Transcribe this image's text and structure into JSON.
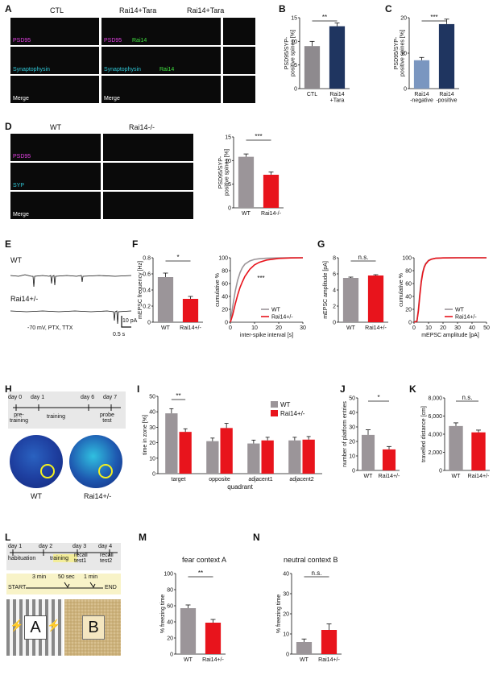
{
  "panels": {
    "A": {
      "letter": "A",
      "col_headers": [
        "CTL",
        "Rai14+Tara",
        "Rai14+Tara"
      ],
      "row_ctl": [
        "PSD95",
        "Synaptophysin",
        "Merge"
      ],
      "row_rai_a": [
        "PSD95",
        "Synaptophysin",
        "Merge"
      ],
      "row_rai_b": [
        "Rai14",
        "Rai14"
      ]
    },
    "B": {
      "letter": "B",
      "ylabel": "PSD95/SYP-\npositive spines [%]",
      "sig": "**"
    },
    "C": {
      "letter": "C",
      "ylabel": "PSD95/SYP-\npositive spines [%]",
      "sig": "***"
    },
    "D": {
      "letter": "D",
      "col_headers": [
        "WT",
        "Rai14-/-"
      ],
      "rows": [
        "PSD95",
        "SYP",
        "Merge"
      ],
      "ylabel": "PSD95/SYP-\npositive spines [%]",
      "sig": "***"
    },
    "E": {
      "letter": "E",
      "trace_labels": [
        "WT",
        "Rai14+/-"
      ],
      "condition": "-70 mV, PTX, TTX",
      "scale_y": "10 pA",
      "scale_x": "0.5 s"
    },
    "F": {
      "letter": "F",
      "bar_ylabel": "mEPSC frequency [Hz]",
      "sig": "*",
      "cum_ylabel": "cumulative %",
      "cum_xlabel": "inter-spike interval [s]",
      "cum_sig": "***",
      "legend": [
        "WT",
        "Rai14+/-"
      ]
    },
    "G": {
      "letter": "G",
      "bar_ylabel": "mEPSC amplitude [pA]",
      "sig": "n.s.",
      "cum_ylabel": "cumulative %",
      "cum_xlabel": "mEPSC amplitude [pA]",
      "legend": [
        "WT",
        "Rai14+/-"
      ]
    },
    "H": {
      "letter": "H",
      "days": [
        "day 0",
        "day 1",
        "day 6",
        "day 7"
      ],
      "phases": [
        "pre-\ntraining",
        "training",
        "probe\ntest"
      ],
      "maze_labels": [
        "WT",
        "Rai14+/-"
      ]
    },
    "I": {
      "letter": "I",
      "ylabel": "time in zone [%]",
      "xlabel": "quadrant",
      "sig": "**",
      "legend": [
        "WT",
        "Rai14+/-"
      ]
    },
    "J": {
      "letter": "J",
      "ylabel": "number of platform entries",
      "sig": "*"
    },
    "K": {
      "letter": "K",
      "ylabel": "travelled distance [cm]",
      "sig": "n.s."
    },
    "L": {
      "letter": "L",
      "days": [
        "day 1",
        "day 2",
        "day 3",
        "day 4"
      ],
      "phases": [
        "habituation",
        "training",
        "recall\ntest1",
        "recall\ntest2"
      ],
      "timeline": [
        "START",
        "3 min",
        "50 sec",
        "1 min",
        "END"
      ],
      "contexts": [
        "A",
        "B"
      ]
    },
    "M": {
      "letter": "M",
      "title": "fear context A",
      "ylabel": "% freezing time",
      "sig": "**"
    },
    "N": {
      "letter": "N",
      "title": "neutral context B",
      "ylabel": "% freezing time",
      "sig": "n.s."
    }
  },
  "colors": {
    "wt": "#9b9599",
    "het": "#e8141c",
    "ctl": "#8e8a8e",
    "rai": "#1f3560",
    "neg": "#7a96c0"
  },
  "chart_data": [
    {
      "panel": "B",
      "type": "bar",
      "categories": [
        "CTL",
        "Rai14\n+Tara"
      ],
      "values": [
        9.0,
        13.2
      ],
      "errors": [
        1.0,
        0.7
      ],
      "ylim": [
        0,
        15
      ],
      "yticks": [
        0,
        5,
        10,
        15
      ],
      "ylabel": "PSD95/SYP-\npositive spines [%]"
    },
    {
      "panel": "C",
      "type": "bar",
      "categories": [
        "Rai14\n-negative",
        "Rai14\n-positive"
      ],
      "values": [
        8.0,
        18.2
      ],
      "errors": [
        0.8,
        1.4
      ],
      "ylim": [
        0,
        20
      ],
      "yticks": [
        0,
        10,
        20
      ],
      "ylabel": "PSD95/SYP-\npositive spines [%]"
    },
    {
      "panel": "D",
      "type": "bar",
      "categories": [
        "WT",
        "Rai14-/-"
      ],
      "values": [
        10.8,
        7.0
      ],
      "errors": [
        0.6,
        0.6
      ],
      "ylim": [
        0,
        15
      ],
      "yticks": [
        0,
        5,
        10,
        15
      ],
      "ylabel": "PSD95/SYP-\npositive spines [%]"
    },
    {
      "panel": "F",
      "type": "bar",
      "categories": [
        "WT",
        "Rai14+/-"
      ],
      "values": [
        0.56,
        0.29
      ],
      "errors": [
        0.05,
        0.03
      ],
      "ylim": [
        0,
        0.8
      ],
      "yticks": [
        0.0,
        0.2,
        0.4,
        0.6,
        0.8
      ],
      "ylabel": "mEPSC frequency [Hz]"
    },
    {
      "panel": "F",
      "type": "line",
      "xlim": [
        0,
        30
      ],
      "xticks": [
        0,
        10,
        20,
        30
      ],
      "ylim": [
        0,
        100
      ],
      "yticks": [
        0,
        20,
        40,
        60,
        80,
        100
      ],
      "xlabel": "inter-spike interval [s]",
      "ylabel": "cumulative %",
      "series": [
        {
          "name": "WT",
          "x": [
            0,
            1,
            2,
            3,
            4,
            5,
            6,
            8,
            10,
            12,
            15,
            20,
            25,
            30
          ],
          "y": [
            0,
            25,
            48,
            65,
            77,
            85,
            90,
            95,
            97.5,
            98.5,
            99.3,
            99.8,
            100,
            100
          ]
        },
        {
          "name": "Rai14+/-",
          "x": [
            0,
            1,
            2,
            3,
            4,
            5,
            6,
            8,
            10,
            12,
            15,
            20,
            25,
            30
          ],
          "y": [
            0,
            12,
            28,
            42,
            54,
            63,
            71,
            82,
            89,
            93,
            96.5,
            99,
            99.7,
            100
          ]
        }
      ]
    },
    {
      "panel": "G",
      "type": "bar",
      "categories": [
        "WT",
        "Rai14+/-"
      ],
      "values": [
        5.5,
        5.8
      ],
      "errors": [
        0.1,
        0.1
      ],
      "ylim": [
        0,
        8
      ],
      "yticks": [
        0,
        2,
        4,
        6,
        8
      ],
      "ylabel": "mEPSC amplitude [pA]"
    },
    {
      "panel": "G",
      "type": "line",
      "xlim": [
        0,
        50
      ],
      "xticks": [
        0,
        10,
        20,
        30,
        40,
        50
      ],
      "ylim": [
        0,
        100
      ],
      "yticks": [
        0,
        20,
        40,
        60,
        80,
        100
      ],
      "xlabel": "mEPSC amplitude [pA]",
      "ylabel": "cumulative %",
      "series": [
        {
          "name": "WT",
          "x": [
            0,
            2,
            3,
            4,
            5,
            6,
            7,
            8,
            10,
            12,
            15,
            20,
            30,
            50
          ],
          "y": [
            0,
            2,
            20,
            45,
            65,
            78,
            86,
            91,
            96,
            98,
            99.3,
            99.8,
            100,
            100
          ]
        },
        {
          "name": "Rai14+/-",
          "x": [
            0,
            2,
            3,
            4,
            5,
            6,
            7,
            8,
            10,
            12,
            15,
            20,
            30,
            50
          ],
          "y": [
            0,
            1.5,
            17,
            41,
            62,
            76,
            85,
            90,
            95.5,
            97.8,
            99.2,
            99.8,
            100,
            100
          ]
        }
      ]
    },
    {
      "panel": "I",
      "type": "bar",
      "categories": [
        "target",
        "opposite",
        "adjacent1",
        "adjacent2"
      ],
      "ylim": [
        0,
        50
      ],
      "yticks": [
        0,
        10,
        20,
        30,
        40,
        50
      ],
      "ylabel": "time in zone [%]",
      "xlabel": "quadrant",
      "series": [
        {
          "name": "WT",
          "values": [
            39,
            21,
            19.5,
            21.5
          ],
          "errors": [
            3,
            2,
            2.2,
            2
          ]
        },
        {
          "name": "Rai14+/-",
          "values": [
            27,
            29.5,
            21.5,
            22
          ],
          "errors": [
            2,
            3,
            2,
            2
          ]
        }
      ]
    },
    {
      "panel": "J",
      "type": "bar",
      "categories": [
        "WT",
        "Rai14+/-"
      ],
      "values": [
        24.5,
        14.5
      ],
      "errors": [
        3.5,
        2
      ],
      "ylim": [
        0,
        50
      ],
      "yticks": [
        0,
        10,
        20,
        30,
        40,
        50
      ],
      "ylabel": "number of platform entries"
    },
    {
      "panel": "K",
      "type": "bar",
      "categories": [
        "WT",
        "Rai14+/-"
      ],
      "values": [
        4900,
        4200
      ],
      "errors": [
        350,
        250
      ],
      "ylim": [
        0,
        8000
      ],
      "yticks": [
        "0",
        "2,000",
        "4,000",
        "6,000",
        "8,000"
      ],
      "ylabel": "travelled distance [cm]"
    },
    {
      "panel": "M",
      "type": "bar",
      "categories": [
        "WT",
        "Rai14+/-"
      ],
      "values": [
        57,
        39
      ],
      "errors": [
        4,
        4
      ],
      "ylim": [
        0,
        100
      ],
      "yticks": [
        0,
        20,
        40,
        60,
        80,
        100
      ],
      "ylabel": "% freezing time",
      "title": "fear context A"
    },
    {
      "panel": "N",
      "type": "bar",
      "categories": [
        "WT",
        "Rai14+/-"
      ],
      "values": [
        6,
        12
      ],
      "errors": [
        1.5,
        3
      ],
      "ylim": [
        0,
        40
      ],
      "yticks": [
        0,
        10,
        20,
        30,
        40
      ],
      "ylabel": "% freezing time",
      "title": "neutral context B"
    }
  ]
}
